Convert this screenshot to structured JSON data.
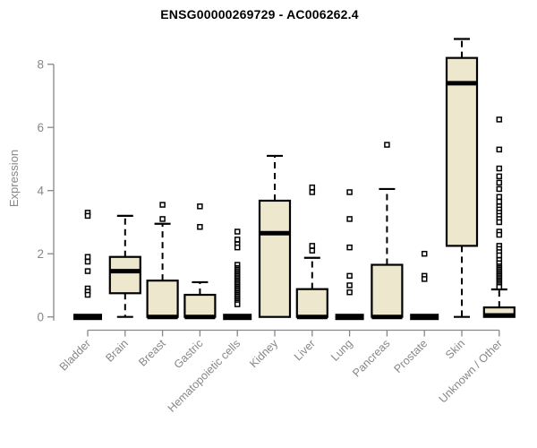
{
  "chart_data": {
    "type": "boxplot",
    "title": "ENSG00000269729 - AC006262.4",
    "ylabel": "Expression",
    "xlabel": "",
    "ylim": [
      0,
      8.9
    ],
    "yticks": [
      0,
      2,
      4,
      6,
      8
    ],
    "grid": false,
    "legend": false,
    "colors": {
      "box_fill": "#EDE8CD",
      "box_stroke": "#000000",
      "axis": "#878787",
      "title": "#000000"
    },
    "categories": [
      "Bladder",
      "Brain",
      "Breast",
      "Gastric",
      "Hematopoietic cells",
      "Kidney",
      "Liver",
      "Lung",
      "Pancreas",
      "Prostate",
      "Skin",
      "Unknown / Other"
    ],
    "series": [
      {
        "category": "Bladder",
        "min": 0,
        "q1": 0,
        "median": 0,
        "q3": 0,
        "max": 0,
        "outliers": [
          3.3,
          3.2,
          1.9,
          1.75,
          1.45,
          0.9,
          0.8,
          0.7
        ]
      },
      {
        "category": "Brain",
        "min": 0,
        "q1": 0.75,
        "median": 1.45,
        "q3": 1.9,
        "max": 3.2,
        "outliers": []
      },
      {
        "category": "Breast",
        "min": 0,
        "q1": 0,
        "median": 0,
        "q3": 1.15,
        "max": 2.95,
        "outliers": [
          3.55,
          3.1
        ]
      },
      {
        "category": "Gastric",
        "min": 0,
        "q1": 0,
        "median": 0,
        "q3": 0.7,
        "max": 1.1,
        "outliers": [
          3.5,
          2.85
        ]
      },
      {
        "category": "Hematopoietic cells",
        "min": 0,
        "q1": 0,
        "median": 0,
        "q3": 0,
        "max": 0,
        "outliers": [
          2.7,
          2.45,
          2.3,
          2.2,
          1.65,
          1.55,
          1.5,
          1.45,
          1.4,
          1.35,
          1.3,
          1.25,
          1.2,
          1.15,
          1.1,
          1.05,
          1.0,
          0.95,
          0.9,
          0.85,
          0.8,
          0.75,
          0.7,
          0.65,
          0.6,
          0.55,
          0.5,
          0.45,
          0.4
        ]
      },
      {
        "category": "Kidney",
        "min": 0,
        "q1": 0,
        "median": 2.65,
        "q3": 3.68,
        "max": 5.1,
        "outliers": []
      },
      {
        "category": "Liver",
        "min": 0,
        "q1": 0,
        "median": 0,
        "q3": 0.88,
        "max": 1.87,
        "outliers": [
          4.1,
          3.95,
          2.25,
          2.1
        ]
      },
      {
        "category": "Lung",
        "min": 0,
        "q1": 0,
        "median": 0,
        "q3": 0,
        "max": 0,
        "outliers": [
          3.95,
          3.1,
          2.2,
          1.3,
          1.0,
          0.78
        ]
      },
      {
        "category": "Pancreas",
        "min": 0,
        "q1": 0,
        "median": 0,
        "q3": 1.65,
        "max": 4.05,
        "outliers": [
          5.45
        ]
      },
      {
        "category": "Prostate",
        "min": 0,
        "q1": 0,
        "median": 0,
        "q3": 0,
        "max": 0,
        "outliers": [
          2.0,
          1.3,
          1.2
        ]
      },
      {
        "category": "Skin",
        "min": 0,
        "q1": 2.25,
        "median": 7.4,
        "q3": 8.2,
        "max": 8.8,
        "outliers": []
      },
      {
        "category": "Unknown / Other",
        "min": 0,
        "q1": 0,
        "median": 0.05,
        "q3": 0.3,
        "max": 0.87,
        "outliers": [
          6.25,
          5.3,
          4.7,
          4.45,
          4.25,
          4.05,
          3.8,
          3.65,
          3.5,
          3.4,
          3.3,
          3.2,
          3.1,
          3.0,
          2.7,
          2.6,
          2.25,
          2.15,
          2.05,
          1.95,
          1.8,
          1.7,
          1.6,
          1.55,
          1.5,
          1.45,
          1.4,
          1.35,
          1.3,
          1.25,
          1.2,
          1.15,
          1.1,
          1.05,
          1.0,
          0.95
        ]
      }
    ]
  }
}
